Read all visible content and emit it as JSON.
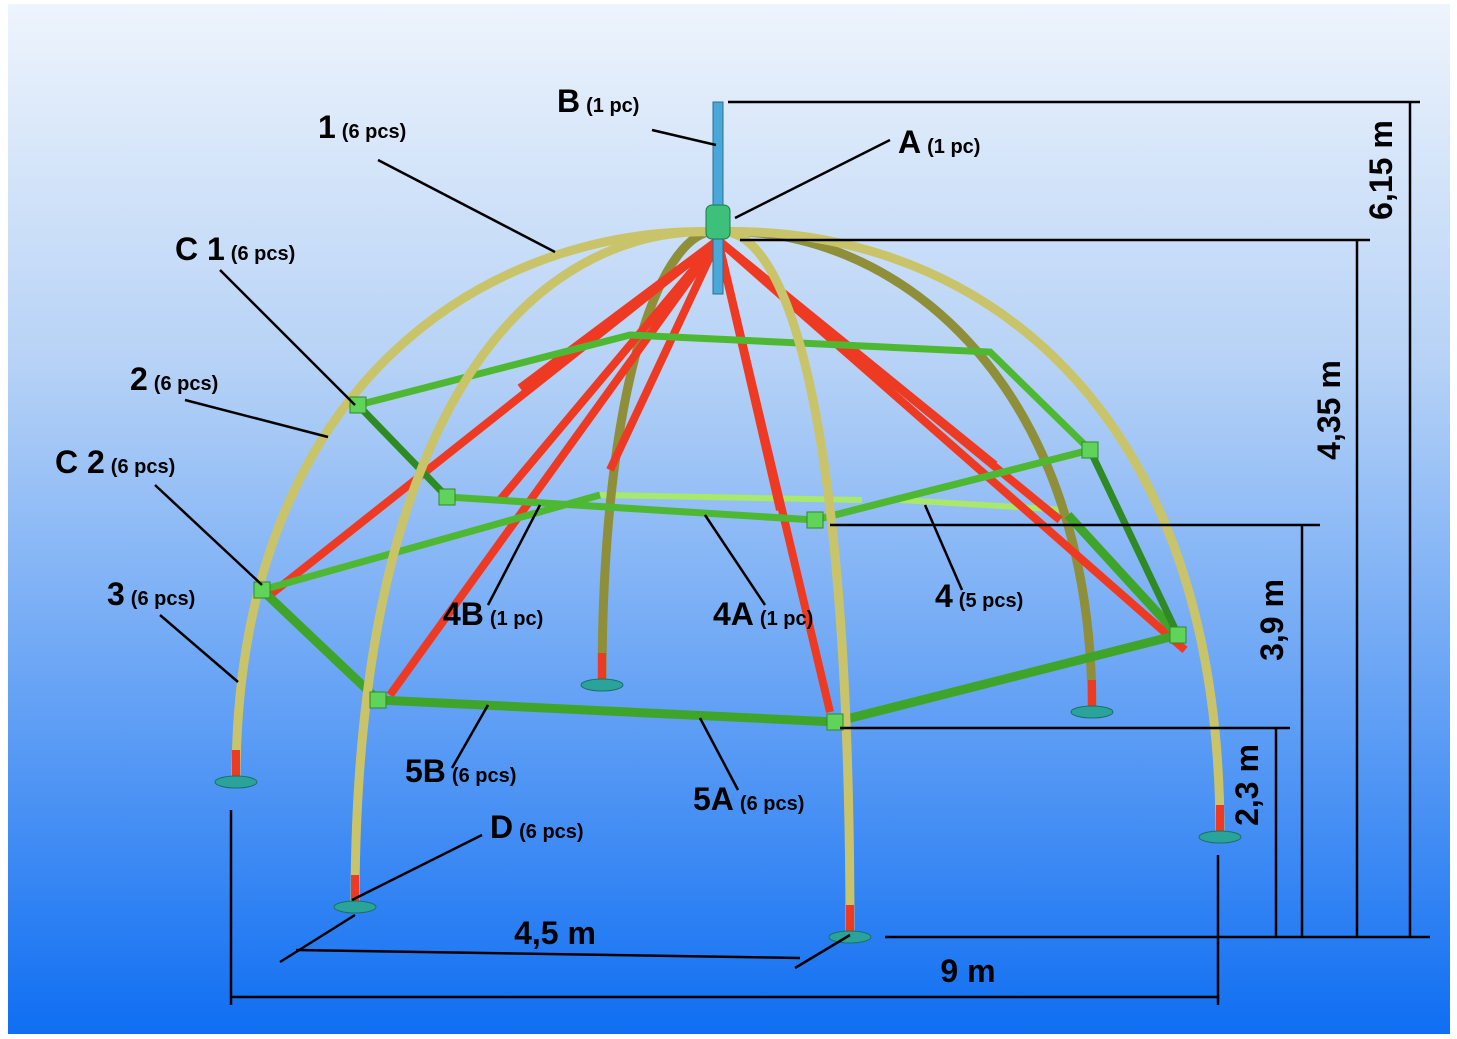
{
  "labels": [
    {
      "code": "B",
      "qty": "(1 pc)"
    },
    {
      "code": "1",
      "qty": "(6 pcs)"
    },
    {
      "code": "A",
      "qty": "(1 pc)"
    },
    {
      "code": "C 1",
      "qty": "(6 pcs)"
    },
    {
      "code": "2",
      "qty": "(6 pcs)"
    },
    {
      "code": "C 2",
      "qty": "(6 pcs)"
    },
    {
      "code": "3",
      "qty": "(6 pcs)"
    },
    {
      "code": "4B",
      "qty": "(1 pc)"
    },
    {
      "code": "4A",
      "qty": "(1 pc)"
    },
    {
      "code": "4",
      "qty": "(5 pcs)"
    },
    {
      "code": "5B",
      "qty": "(6 pcs)"
    },
    {
      "code": "5A",
      "qty": "(6 pcs)"
    },
    {
      "code": "D",
      "qty": "(6 pcs)"
    }
  ],
  "dimensions": [
    "6,15 m",
    "4,35 m",
    "3,9 m",
    "2,3 m",
    "4,5 m",
    "9 m"
  ]
}
